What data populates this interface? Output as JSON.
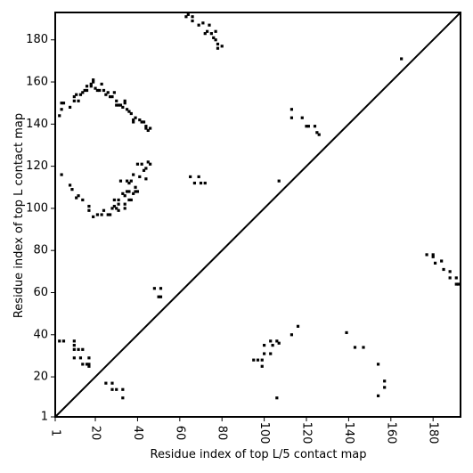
{
  "chart_data": {
    "type": "scatter",
    "xlabel": "Residue index of top L/5 contact map",
    "ylabel": "Residue index of top L contact map",
    "xlim": [
      1,
      193
    ],
    "ylim": [
      1,
      193
    ],
    "x_ticks": [
      {
        "value": 1,
        "label": "1"
      },
      {
        "value": 20,
        "label": "20"
      },
      {
        "value": 40,
        "label": "40"
      },
      {
        "value": 60,
        "label": "60"
      },
      {
        "value": 80,
        "label": "80"
      },
      {
        "value": 100,
        "label": "100"
      },
      {
        "value": 120,
        "label": "120"
      },
      {
        "value": 140,
        "label": "140"
      },
      {
        "value": 160,
        "label": "160"
      },
      {
        "value": 180,
        "label": "180"
      }
    ],
    "y_ticks": [
      {
        "value": 1,
        "label": "1"
      },
      {
        "value": 20,
        "label": "20"
      },
      {
        "value": 40,
        "label": "40"
      },
      {
        "value": 60,
        "label": "60"
      },
      {
        "value": 80,
        "label": "80"
      },
      {
        "value": 100,
        "label": "100"
      },
      {
        "value": 120,
        "label": "120"
      },
      {
        "value": 140,
        "label": "140"
      },
      {
        "value": 160,
        "label": "160"
      },
      {
        "value": 180,
        "label": "180"
      }
    ],
    "diagonal": true,
    "grid": false,
    "marker_color": "#000000",
    "points_top_L": [
      [
        3,
        144
      ],
      [
        4,
        147
      ],
      [
        4,
        150
      ],
      [
        5,
        150
      ],
      [
        8,
        148
      ],
      [
        10,
        151
      ],
      [
        10,
        153
      ],
      [
        11,
        154
      ],
      [
        12,
        151
      ],
      [
        13,
        154
      ],
      [
        14,
        155
      ],
      [
        15,
        156
      ],
      [
        16,
        156
      ],
      [
        16,
        158
      ],
      [
        18,
        159
      ],
      [
        18,
        158
      ],
      [
        19,
        160
      ],
      [
        19,
        161
      ],
      [
        20,
        157
      ],
      [
        21,
        156
      ],
      [
        22,
        156
      ],
      [
        23,
        159
      ],
      [
        24,
        156
      ],
      [
        25,
        154
      ],
      [
        26,
        155
      ],
      [
        27,
        153
      ],
      [
        28,
        153
      ],
      [
        29,
        155
      ],
      [
        30,
        149
      ],
      [
        30,
        151
      ],
      [
        31,
        149
      ],
      [
        32,
        149
      ],
      [
        33,
        148
      ],
      [
        34,
        151
      ],
      [
        34,
        150
      ],
      [
        35,
        147
      ],
      [
        36,
        146
      ],
      [
        37,
        145
      ],
      [
        38,
        141
      ],
      [
        38,
        142
      ],
      [
        39,
        143
      ],
      [
        41,
        142
      ],
      [
        42,
        141
      ],
      [
        43,
        141
      ],
      [
        44,
        139
      ],
      [
        44,
        138
      ],
      [
        45,
        137
      ],
      [
        46,
        138
      ],
      [
        40,
        121
      ],
      [
        42,
        121
      ],
      [
        43,
        118
      ],
      [
        44,
        119
      ],
      [
        45,
        122
      ],
      [
        46,
        121
      ],
      [
        44,
        114
      ],
      [
        41,
        115
      ],
      [
        38,
        116
      ],
      [
        36,
        112
      ],
      [
        35,
        108
      ],
      [
        36,
        108
      ],
      [
        34,
        106
      ],
      [
        33,
        107
      ],
      [
        31,
        104
      ],
      [
        31,
        102
      ],
      [
        31,
        99
      ],
      [
        30,
        100
      ],
      [
        29,
        104
      ],
      [
        29,
        101
      ],
      [
        28,
        100
      ],
      [
        27,
        97
      ],
      [
        26,
        97
      ],
      [
        24,
        99
      ],
      [
        23,
        97
      ],
      [
        21,
        97
      ],
      [
        19,
        96
      ],
      [
        17,
        99
      ],
      [
        17,
        101
      ],
      [
        14,
        104
      ],
      [
        12,
        106
      ],
      [
        11,
        105
      ],
      [
        9,
        109
      ],
      [
        8,
        111
      ],
      [
        4,
        116
      ],
      [
        38,
        107
      ],
      [
        39,
        108
      ],
      [
        40,
        108
      ],
      [
        37,
        104
      ],
      [
        36,
        104
      ],
      [
        34,
        102
      ],
      [
        32,
        113
      ],
      [
        35,
        113
      ],
      [
        37,
        113
      ],
      [
        39,
        110
      ],
      [
        34,
        100
      ],
      [
        65,
        115
      ],
      [
        69,
        115
      ],
      [
        67,
        112
      ],
      [
        70,
        112
      ],
      [
        72,
        112
      ],
      [
        74,
        187
      ],
      [
        73,
        184
      ],
      [
        72,
        183
      ],
      [
        75,
        183
      ],
      [
        76,
        181
      ],
      [
        77,
        184
      ],
      [
        77,
        180
      ],
      [
        78,
        178
      ],
      [
        78,
        176
      ],
      [
        80,
        177
      ],
      [
        71,
        188
      ],
      [
        69,
        187
      ],
      [
        66,
        189
      ],
      [
        66,
        191
      ],
      [
        63,
        191
      ],
      [
        64,
        192
      ],
      [
        113,
        147
      ],
      [
        113,
        143
      ],
      [
        118,
        143
      ],
      [
        120,
        139
      ],
      [
        121,
        139
      ],
      [
        124,
        139
      ],
      [
        125,
        136
      ],
      [
        126,
        135
      ],
      [
        107,
        113
      ],
      [
        165,
        171
      ],
      [
        48,
        62
      ],
      [
        51,
        62
      ],
      [
        50,
        58
      ],
      [
        51,
        58
      ],
      [
        3,
        37
      ],
      [
        5,
        37
      ],
      [
        10,
        37
      ],
      [
        10,
        35
      ],
      [
        10,
        33
      ],
      [
        12,
        33
      ],
      [
        14,
        33
      ],
      [
        10,
        29
      ],
      [
        13,
        29
      ],
      [
        17,
        29
      ],
      [
        14,
        26
      ],
      [
        16,
        26
      ],
      [
        17,
        26
      ],
      [
        17,
        25
      ],
      [
        25,
        17
      ],
      [
        28,
        17
      ],
      [
        28,
        14
      ],
      [
        30,
        14
      ],
      [
        33,
        14
      ],
      [
        33,
        10
      ],
      [
        95,
        28
      ],
      [
        97,
        28
      ],
      [
        99,
        28
      ],
      [
        99,
        25
      ],
      [
        100,
        31
      ],
      [
        100,
        35
      ],
      [
        103,
        31
      ],
      [
        104,
        35
      ],
      [
        103,
        37
      ],
      [
        106,
        37
      ],
      [
        107,
        36
      ],
      [
        106,
        10
      ],
      [
        113,
        40
      ],
      [
        116,
        44
      ],
      [
        139,
        41
      ],
      [
        143,
        34
      ],
      [
        147,
        34
      ],
      [
        154,
        26
      ],
      [
        157,
        18
      ],
      [
        157,
        15
      ],
      [
        154,
        11
      ],
      [
        177,
        78
      ],
      [
        180,
        78
      ],
      [
        180,
        77
      ],
      [
        181,
        74
      ],
      [
        184,
        75
      ],
      [
        185,
        71
      ],
      [
        188,
        70
      ],
      [
        188,
        67
      ],
      [
        191,
        67
      ],
      [
        191,
        64
      ],
      [
        192,
        64
      ]
    ]
  }
}
